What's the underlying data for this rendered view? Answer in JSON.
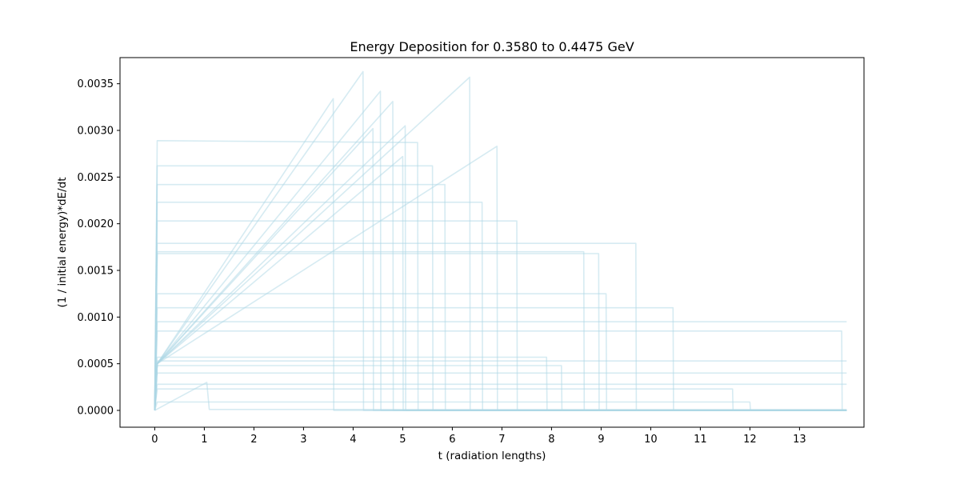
{
  "chart_data": {
    "type": "line",
    "title": "Energy Deposition for 0.3580 to 0.4475 GeV",
    "xlabel": "t (radiation lengths)",
    "ylabel": "(1 / initial energy)*dE/dt",
    "xlim": [
      -0.7,
      14.3
    ],
    "ylim": [
      -0.00018,
      0.00378
    ],
    "x_ticks": [
      0,
      1,
      2,
      3,
      4,
      5,
      6,
      7,
      8,
      9,
      10,
      11,
      12,
      13
    ],
    "x_tick_labels": [
      "0",
      "1",
      "2",
      "3",
      "4",
      "5",
      "6",
      "7",
      "8",
      "9",
      "10",
      "11",
      "12",
      "13"
    ],
    "y_ticks": [
      0,
      0.0005,
      0.001,
      0.0015,
      0.002,
      0.0025,
      0.003,
      0.0035
    ],
    "y_tick_labels": [
      "0.0000",
      "0.0005",
      "0.0010",
      "0.0015",
      "0.0020",
      "0.0025",
      "0.0030",
      "0.0035"
    ],
    "grid": false,
    "legend": "none",
    "line_color": "#add8e6",
    "line_opacity": 0.5,
    "series_count_estimate": 160,
    "x_end": 13.95,
    "series": [
      {
        "x": [
          0,
          0.05,
          4.2,
          4.21,
          13.95
        ],
        "y": [
          0,
          0.0005,
          0.00363,
          0,
          0
        ]
      },
      {
        "x": [
          0,
          0.05,
          6.35,
          6.36,
          13.95
        ],
        "y": [
          0,
          0.0005,
          0.00357,
          0,
          0
        ]
      },
      {
        "x": [
          0,
          0.05,
          4.55,
          4.56,
          13.95
        ],
        "y": [
          0,
          0.0005,
          0.00342,
          0,
          0
        ]
      },
      {
        "x": [
          0,
          0.05,
          3.6,
          3.61,
          13.95
        ],
        "y": [
          0,
          0.0005,
          0.00334,
          0,
          0
        ]
      },
      {
        "x": [
          0,
          0.05,
          4.8,
          4.81,
          13.95
        ],
        "y": [
          0,
          0.0005,
          0.00331,
          0,
          0
        ]
      },
      {
        "x": [
          0,
          0.05,
          5.05,
          5.06,
          13.95
        ],
        "y": [
          0,
          0.0005,
          0.00305,
          0,
          0
        ]
      },
      {
        "x": [
          0,
          0.05,
          4.4,
          4.41,
          13.95
        ],
        "y": [
          0,
          0.0005,
          0.00302,
          0,
          0
        ]
      },
      {
        "x": [
          0,
          0.05,
          0.05,
          5.3,
          5.31,
          13.95
        ],
        "y": [
          0,
          0.00289,
          0.00289,
          0.00287,
          0,
          0
        ]
      },
      {
        "x": [
          0,
          0.05,
          6.9,
          6.91,
          13.95
        ],
        "y": [
          0,
          0.0005,
          0.00283,
          0,
          0
        ]
      },
      {
        "x": [
          0,
          0.05,
          5.0,
          5.01,
          13.95
        ],
        "y": [
          0,
          0.0005,
          0.00272,
          0,
          0
        ]
      },
      {
        "x": [
          0,
          0.05,
          0.05,
          5.6,
          5.61,
          13.95
        ],
        "y": [
          0,
          0.00262,
          0.00262,
          0.00262,
          0,
          0
        ]
      },
      {
        "x": [
          0,
          0.05,
          0.05,
          5.85,
          5.86,
          13.95
        ],
        "y": [
          0,
          0.00242,
          0.00242,
          0.00242,
          0,
          0
        ]
      },
      {
        "x": [
          0,
          0.05,
          0.05,
          6.6,
          6.61,
          13.95
        ],
        "y": [
          0,
          0.00223,
          0.00223,
          0.00223,
          0,
          0
        ]
      },
      {
        "x": [
          0,
          0.05,
          0.05,
          7.3,
          7.31,
          13.95
        ],
        "y": [
          0,
          0.00203,
          0.00203,
          0.00203,
          0,
          0
        ]
      },
      {
        "x": [
          0,
          0.05,
          0.05,
          9.7,
          9.71,
          13.95
        ],
        "y": [
          0,
          0.00179,
          0.00179,
          0.00179,
          0,
          0
        ]
      },
      {
        "x": [
          0,
          0.05,
          0.05,
          8.65,
          8.66,
          13.95
        ],
        "y": [
          0,
          0.0017,
          0.0017,
          0.0017,
          0,
          0
        ]
      },
      {
        "x": [
          0,
          0.05,
          0.05,
          8.95,
          8.96,
          13.95
        ],
        "y": [
          0,
          0.00168,
          0.00168,
          0.00168,
          0,
          0
        ]
      },
      {
        "x": [
          0,
          0.05,
          0.05,
          9.1,
          9.11,
          13.95
        ],
        "y": [
          0,
          0.00125,
          0.00125,
          0.00125,
          0,
          0
        ]
      },
      {
        "x": [
          0,
          0.05,
          0.05,
          10.45,
          10.46,
          13.95
        ],
        "y": [
          0,
          0.0011,
          0.0011,
          0.0011,
          0,
          0
        ]
      },
      {
        "x": [
          0,
          0.05,
          0.05,
          13.95
        ],
        "y": [
          0,
          0.00095,
          0.00095,
          0.00095
        ]
      },
      {
        "x": [
          0,
          0.05,
          0.05,
          13.85,
          13.86,
          13.95
        ],
        "y": [
          0,
          0.00085,
          0.00085,
          0.00085,
          0,
          0
        ]
      },
      {
        "x": [
          0,
          0.05,
          0.05,
          11.65,
          11.66,
          13.95
        ],
        "y": [
          0,
          0.00023,
          0.00023,
          0.00023,
          0,
          0
        ]
      },
      {
        "x": [
          0,
          0.05,
          0.05,
          12.0,
          12.01,
          13.95
        ],
        "y": [
          0,
          9e-05,
          9e-05,
          9e-05,
          0,
          0
        ]
      },
      {
        "x": [
          0,
          0.05,
          0.05,
          13.95
        ],
        "y": [
          0,
          0.00053,
          0.00053,
          0.00053
        ]
      },
      {
        "x": [
          0,
          0.05,
          0.05,
          13.95
        ],
        "y": [
          0,
          0.0004,
          0.0004,
          0.0004
        ]
      },
      {
        "x": [
          0,
          0.05,
          0.05,
          13.95
        ],
        "y": [
          0,
          0.00028,
          0.00028,
          0.00028
        ]
      },
      {
        "x": [
          0,
          1.05,
          1.1,
          13.95
        ],
        "y": [
          0,
          0.0003,
          1e-05,
          1e-05
        ]
      },
      {
        "x": [
          0,
          0.05,
          0.05,
          8.2,
          8.21,
          13.95
        ],
        "y": [
          0,
          0.00048,
          0.00048,
          0.00048,
          0,
          0
        ]
      },
      {
        "x": [
          0,
          0.05,
          0.05,
          7.9,
          7.91,
          13.95
        ],
        "y": [
          0,
          0.00057,
          0.00057,
          0.00057,
          0,
          0
        ]
      }
    ]
  }
}
